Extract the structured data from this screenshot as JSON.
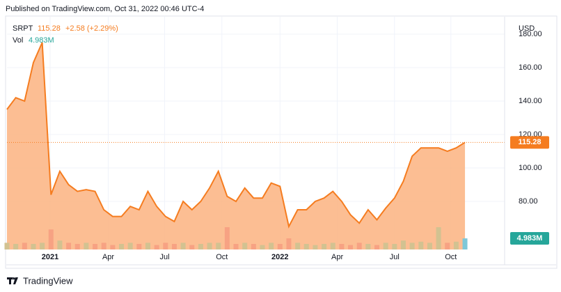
{
  "header": {
    "published": "Published on TradingView.com, Oct 31, 2022 00:46 UTC-4",
    "brand": "TradingView"
  },
  "legend": {
    "symbol": "SRPT",
    "change": "+2.58 (+2.29%)",
    "vol_label": "Vol",
    "vol_last": "4.983M"
  },
  "chart_data": {
    "type": "area",
    "currency": "USD",
    "values": [
      135,
      142,
      140,
      163,
      175,
      84,
      98,
      90,
      86,
      87,
      86,
      75,
      71,
      71,
      77,
      75,
      86,
      77,
      71,
      68,
      80,
      75,
      80,
      88,
      98,
      83,
      80,
      88,
      82,
      82,
      91,
      89,
      65,
      75,
      75,
      80,
      82,
      86,
      80,
      72,
      67,
      75,
      69,
      76,
      82,
      92,
      107,
      112,
      112,
      112,
      110,
      112,
      115.28
    ],
    "color": "#f57c1f",
    "fill": "#fbb380",
    "up_color": "#d2c291",
    "down_color": "#f7a283",
    "last_color": "#7ec8d8",
    "volume": [
      3,
      2.5,
      3,
      2.5,
      3,
      9,
      4,
      3,
      2.5,
      3,
      2.5,
      3,
      2,
      2.5,
      3,
      2.5,
      3,
      2,
      3,
      2.5,
      3,
      2,
      2.5,
      3,
      3,
      10,
      2.5,
      3,
      2.5,
      2,
      3,
      2.5,
      5,
      3,
      2.5,
      2,
      2.5,
      3,
      2.5,
      2,
      3,
      2.5,
      2,
      3,
      2.5,
      4,
      3,
      3.5,
      3,
      10,
      3,
      3.5,
      4.983
    ],
    "vlim": [
      0,
      20
    ],
    "ylim": [
      51.25,
      188.75
    ],
    "yticks": [
      {
        "value": 80,
        "label": "80.00"
      },
      {
        "value": 100,
        "label": "100.00"
      },
      {
        "value": 120,
        "label": "120.00"
      },
      {
        "value": 140,
        "label": "140.00"
      },
      {
        "value": 160,
        "label": "160.00"
      },
      {
        "value": 180,
        "label": "180.00"
      }
    ],
    "xlim": [
      0,
      56.5
    ],
    "xticks": [
      {
        "value": 4.9,
        "label": "2021"
      },
      {
        "value": 11.5,
        "label": "Apr"
      },
      {
        "value": 17.9,
        "label": "Jul"
      },
      {
        "value": 24.4,
        "label": "Oct"
      },
      {
        "value": 31,
        "label": "2022"
      },
      {
        "value": 37.5,
        "label": "Apr"
      },
      {
        "value": 44,
        "label": "Jul"
      },
      {
        "value": 50.4,
        "label": "Oct"
      }
    ],
    "grid": true
  }
}
